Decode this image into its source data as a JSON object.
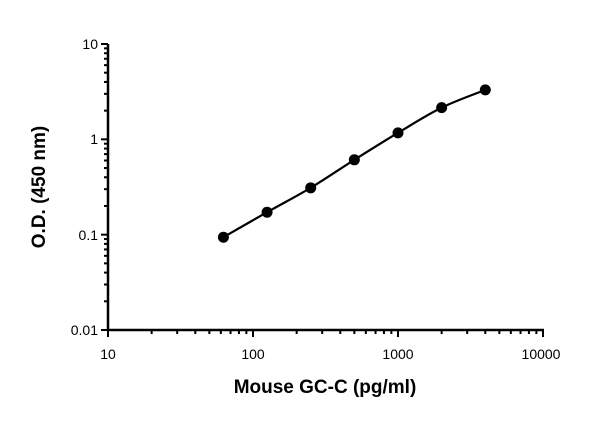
{
  "chart_data": {
    "type": "line",
    "title": "",
    "xlabel": "Mouse GC-C (pg/ml)",
    "ylabel": "O.D. (450 nm)",
    "x_scale": "log",
    "y_scale": "log",
    "xlim": [
      10,
      10000
    ],
    "ylim": [
      0.01,
      10
    ],
    "x_ticks": [
      "10",
      "100",
      "1000",
      "10000"
    ],
    "y_ticks": [
      "0.01",
      "0.1",
      "1",
      "10"
    ],
    "grid": false,
    "legend": "none",
    "series": [
      {
        "x": [
          62.5,
          125,
          250,
          500,
          1000,
          2000,
          4000
        ],
        "y": [
          0.094,
          0.172,
          0.31,
          0.61,
          1.17,
          2.15,
          3.3
        ],
        "marker": "filled-circle",
        "line": "smooth-fit",
        "color": "#000000"
      }
    ]
  }
}
